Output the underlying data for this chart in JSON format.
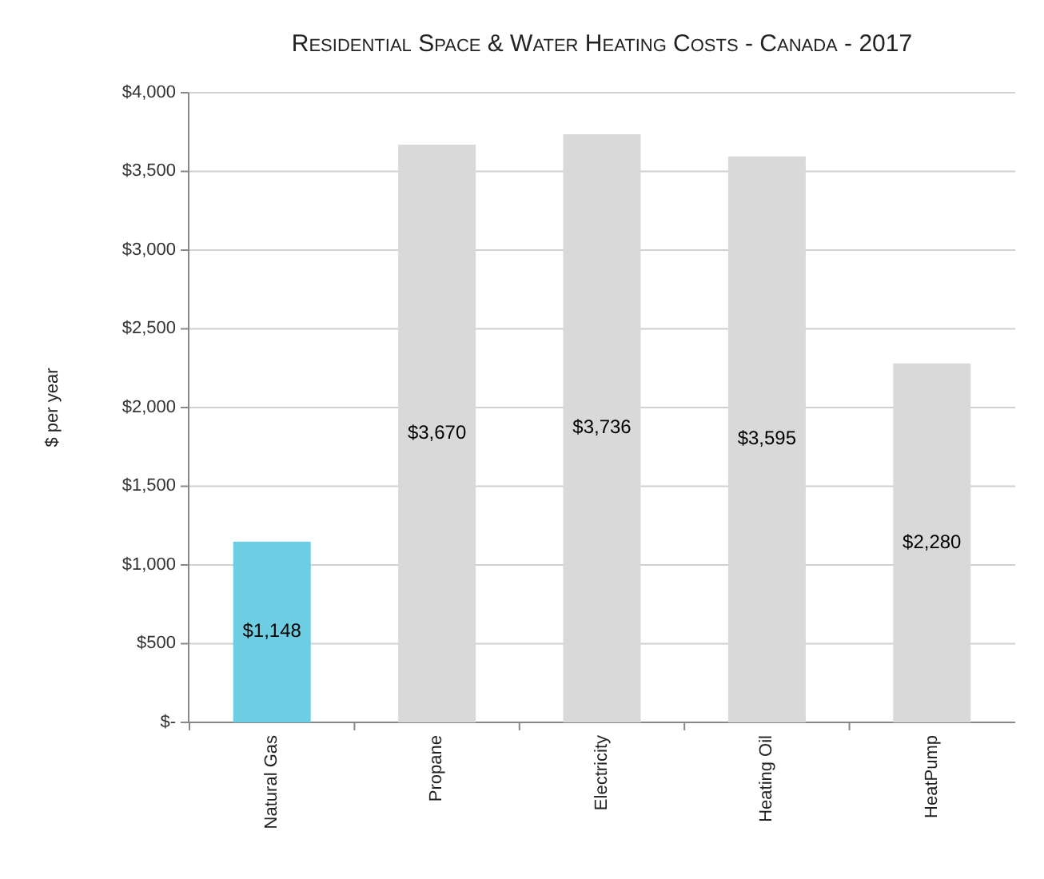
{
  "chart_data": {
    "type": "bar",
    "title": "Residential Space & Water Heating Costs - Canada - 2017",
    "ylabel": "$ per year",
    "categories": [
      "Natural Gas",
      "Propane",
      "Electricity",
      "Heating Oil",
      "HeatPump"
    ],
    "values": [
      1148,
      3670,
      3736,
      3595,
      2280
    ],
    "colors": [
      "#6ccde3",
      "#d9d9d9",
      "#d9d9d9",
      "#d9d9d9",
      "#d9d9d9"
    ],
    "value_labels": [
      "$1,148",
      "$3,670",
      "$3,736",
      "$3,595",
      "$2,280"
    ],
    "ylim": [
      0,
      4000
    ],
    "yticks": [
      {
        "value": 0,
        "label": "$-"
      },
      {
        "value": 500,
        "label": "$500"
      },
      {
        "value": 1000,
        "label": "$1,000"
      },
      {
        "value": 1500,
        "label": "$1,500"
      },
      {
        "value": 2000,
        "label": "$2,000"
      },
      {
        "value": 2500,
        "label": "$2,500"
      },
      {
        "value": 3000,
        "label": "$3,000"
      },
      {
        "value": 3500,
        "label": "$3,500"
      },
      {
        "value": 4000,
        "label": "$4,000"
      }
    ],
    "grid": "y"
  }
}
